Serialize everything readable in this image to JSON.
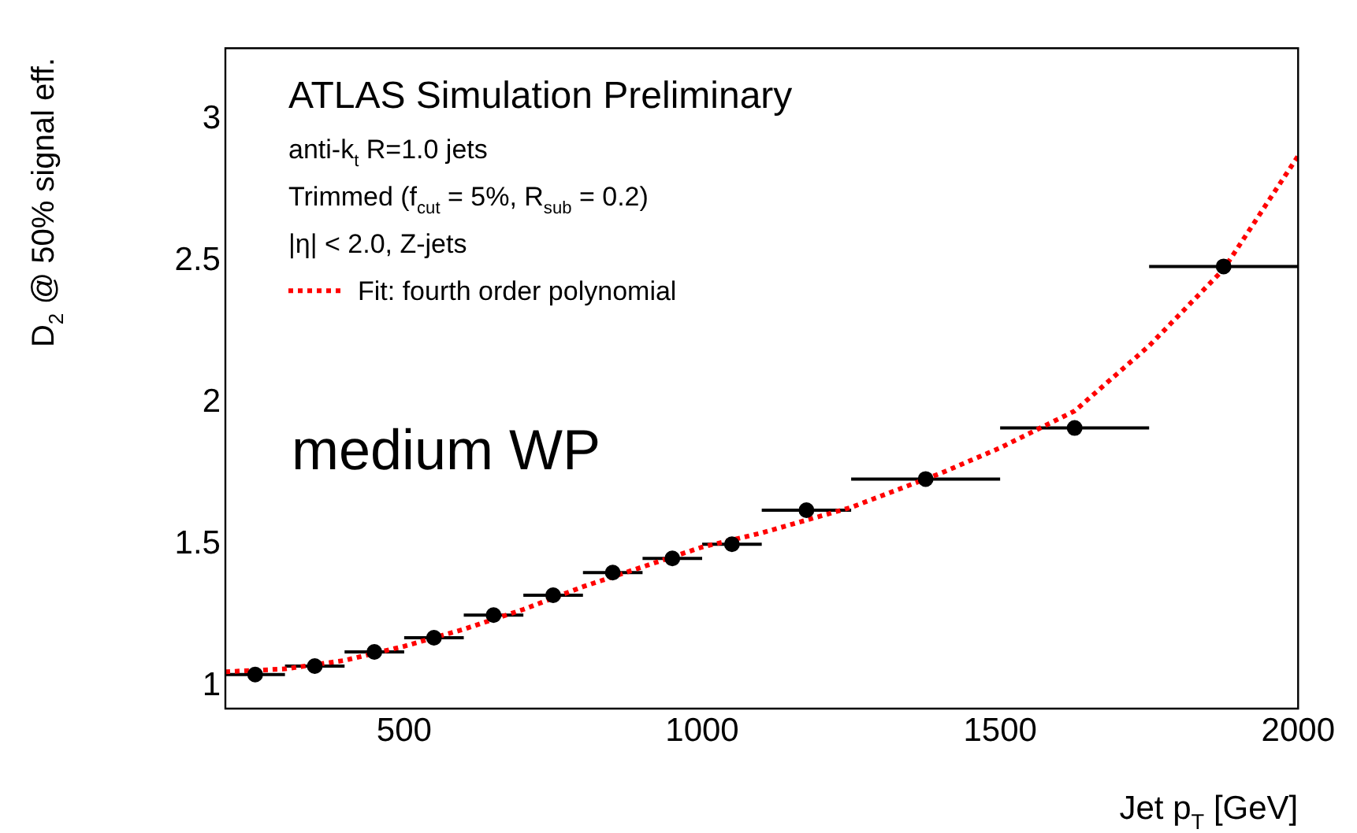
{
  "chart_data": {
    "type": "scatter",
    "xlabel": "Jet p$_{T}$ [GeV]",
    "ylabel": "D$_{2}$ @ 50% signal eff.",
    "xlim": [
      200,
      2000
    ],
    "xticks": [
      500,
      1000,
      1500,
      2000
    ],
    "ylim": [
      0.92,
      3.25
    ],
    "yticks": [
      1,
      1.5,
      2,
      2.5,
      3
    ],
    "grid": false,
    "legend": "top left",
    "annotations": [
      "ATLAS Simulation Preliminary",
      "anti-k$_{t}$ R=1.0 jets",
      "Trimmed (f$_{cut}$ = 5%, R$_{sub}$ = 0.2)",
      "|η| < 2.0, Z-jets",
      "medium WP"
    ],
    "series": [
      {
        "color": "#000000",
        "marker": "circle",
        "x": [
          250,
          350,
          450,
          550,
          650,
          750,
          850,
          950,
          1050,
          1175,
          1375,
          1625,
          1875
        ],
        "values": [
          1.04,
          1.07,
          1.12,
          1.17,
          1.25,
          1.32,
          1.4,
          1.45,
          1.5,
          1.62,
          1.73,
          1.91,
          2.48
        ],
        "xerrors": [
          50,
          50,
          50,
          50,
          50,
          50,
          50,
          50,
          50,
          75,
          125,
          125,
          125
        ]
      },
      {
        "type": "line",
        "name": "Fit: fourth order polynomial",
        "color": "#ff0000",
        "line_style": "dotted",
        "marker": "none",
        "x": [
          200,
          300,
          400,
          500,
          600,
          700,
          800,
          900,
          1000,
          1100,
          1250,
          1400,
          1500,
          1625,
          1750,
          1875,
          2000
        ],
        "values": [
          1.05,
          1.06,
          1.09,
          1.14,
          1.2,
          1.27,
          1.35,
          1.42,
          1.49,
          1.54,
          1.63,
          1.75,
          1.84,
          1.97,
          2.2,
          2.47,
          2.87
        ]
      }
    ]
  }
}
